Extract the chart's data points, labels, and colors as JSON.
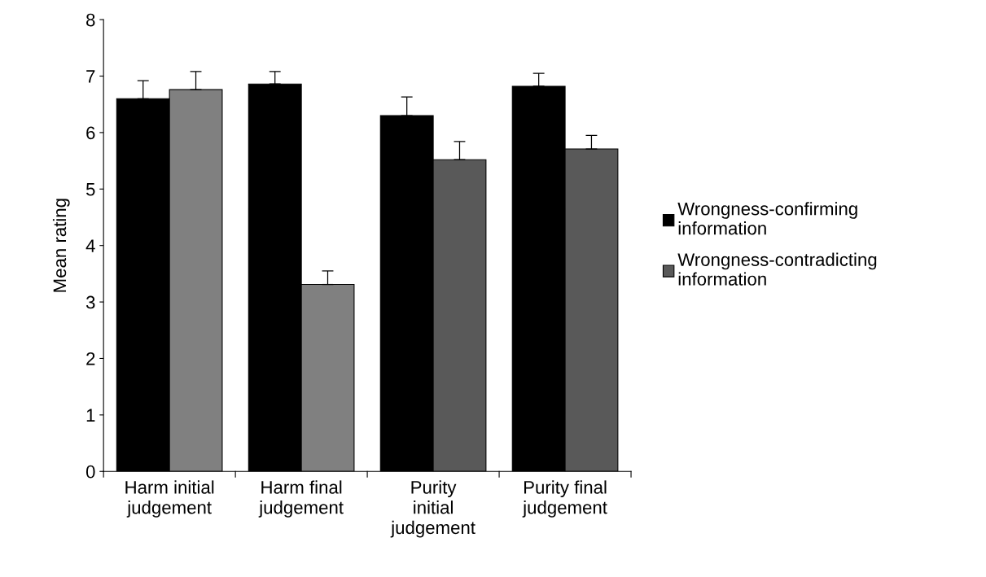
{
  "chart_data": {
    "type": "bar",
    "ylabel": "Mean rating",
    "categories": [
      "Harm initial judgement",
      "Harm final judgement",
      "Purity initial judgement",
      "Purity final judgement"
    ],
    "series": [
      {
        "name": "Wrongness-confirming information",
        "color": "#000000",
        "values": [
          6.6,
          6.86,
          6.3,
          6.82
        ],
        "errors": [
          [
            6.6,
            6.92
          ],
          [
            6.86,
            7.08
          ],
          [
            6.3,
            6.63
          ],
          [
            6.82,
            7.05
          ]
        ]
      },
      {
        "name": "Wrongness-contradicting information",
        "color": "#595959",
        "colors": [
          "#808080",
          "#808080",
          "#595959",
          "#595959"
        ],
        "values": [
          6.76,
          3.31,
          5.52,
          5.71
        ],
        "errors": [
          [
            6.76,
            7.08
          ],
          [
            3.31,
            3.55
          ],
          [
            5.52,
            5.84
          ],
          [
            5.71,
            5.95
          ]
        ]
      }
    ],
    "ylim": [
      0,
      8
    ],
    "yticks": [
      0,
      1,
      2,
      3,
      4,
      5,
      6,
      7,
      8
    ],
    "grid": false,
    "legend": "right"
  }
}
